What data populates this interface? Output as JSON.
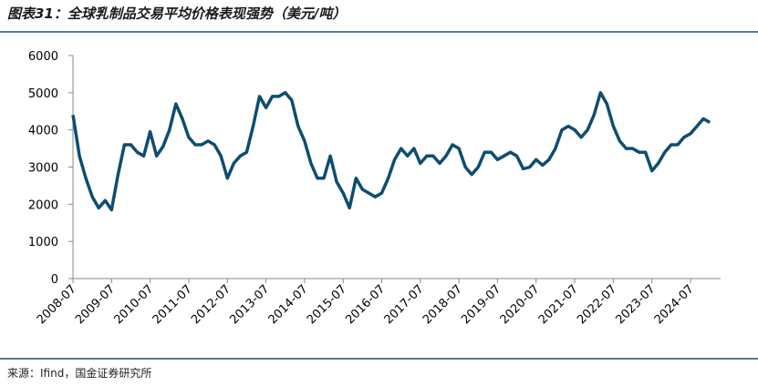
{
  "chart_data": {
    "type": "line",
    "title": "图表31：全球乳制品交易平均价格表现强势（美元/吨）",
    "source": "来源：Ifind，国金证券研究所",
    "color": "#0e4d70",
    "ylim": [
      0,
      6000
    ],
    "yticks": [
      0,
      1000,
      2000,
      3000,
      4000,
      5000,
      6000
    ],
    "categories": [
      "2008-07",
      null,
      null,
      null,
      null,
      null,
      "2009-07",
      null,
      null,
      null,
      null,
      null,
      "2010-07",
      null,
      null,
      null,
      null,
      null,
      "2011-07",
      null,
      null,
      null,
      null,
      null,
      "2012-07",
      null,
      null,
      null,
      null,
      null,
      "2013-07",
      null,
      null,
      null,
      null,
      null,
      "2014-07",
      null,
      null,
      null,
      null,
      null,
      "2015-07",
      null,
      null,
      null,
      null,
      null,
      "2016-07",
      null,
      null,
      null,
      null,
      null,
      "2017-07",
      null,
      null,
      null,
      null,
      null,
      "2018-07",
      null,
      null,
      null,
      null,
      null,
      "2019-07",
      null,
      null,
      null,
      null,
      null,
      "2020-07",
      null,
      null,
      null,
      null,
      null,
      "2021-07",
      null,
      null,
      null,
      null,
      null,
      "2022-07",
      null,
      null,
      null,
      null,
      null,
      "2023-07",
      null,
      null,
      null,
      null,
      null,
      "2024-07",
      null,
      null,
      null
    ],
    "values": [
      4400,
      3300,
      2700,
      2200,
      1900,
      2100,
      1850,
      2800,
      3600,
      3600,
      3400,
      3300,
      3950,
      3300,
      3550,
      4000,
      4700,
      4300,
      3800,
      3600,
      3600,
      3700,
      3600,
      3300,
      2700,
      3100,
      3300,
      3400,
      4100,
      4900,
      4600,
      4900,
      4900,
      5000,
      4800,
      4100,
      3700,
      3100,
      2700,
      2700,
      3300,
      2600,
      2300,
      1900,
      2700,
      2400,
      2300,
      2200,
      2300,
      2700,
      3200,
      3500,
      3300,
      3500,
      3100,
      3300,
      3300,
      3100,
      3300,
      3600,
      3500,
      3000,
      2800,
      3000,
      3400,
      3400,
      3200,
      3300,
      3400,
      3300,
      2950,
      3000,
      3200,
      3050,
      3200,
      3500,
      4000,
      4100,
      4000,
      3800,
      4000,
      4400,
      5000,
      4700,
      4100,
      3700,
      3500,
      3500,
      3400,
      3400,
      2900,
      3100,
      3400,
      3600,
      3600,
      3800,
      3900,
      4100,
      4300,
      4200
    ]
  }
}
